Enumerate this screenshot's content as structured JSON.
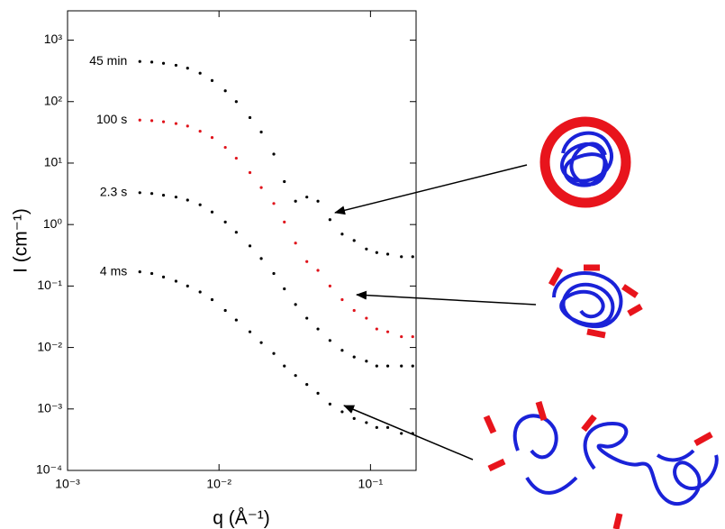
{
  "chart_data": {
    "type": "scatter",
    "x_label": "q (Å⁻¹)",
    "y_label": "I (cm⁻¹)",
    "xscale": "log",
    "yscale": "log",
    "xlim": [
      0.001,
      0.2
    ],
    "ylim": [
      0.0001,
      3000
    ],
    "xticks": [
      {
        "value": 0.001,
        "label": "10⁻³"
      },
      {
        "value": 0.01,
        "label": "10⁻²"
      },
      {
        "value": 0.1,
        "label": "10⁻¹"
      }
    ],
    "yticks": [
      {
        "value": 0.0001,
        "label": "10⁻⁴"
      },
      {
        "value": 0.001,
        "label": "10⁻³"
      },
      {
        "value": 0.01,
        "label": "10⁻²"
      },
      {
        "value": 0.1,
        "label": "10⁻¹"
      },
      {
        "value": 1,
        "label": "10⁰"
      },
      {
        "value": 10,
        "label": "10¹"
      },
      {
        "value": 100,
        "label": "10²"
      },
      {
        "value": 1000,
        "label": "10³"
      }
    ],
    "x": [
      0.003,
      0.0036,
      0.0043,
      0.0052,
      0.0062,
      0.0075,
      0.009,
      0.011,
      0.013,
      0.016,
      0.019,
      0.023,
      0.027,
      0.032,
      0.038,
      0.045,
      0.054,
      0.065,
      0.078,
      0.094,
      0.11,
      0.13,
      0.16,
      0.19
    ],
    "series": [
      {
        "name": "45 min",
        "color": "#000000",
        "values": [
          450,
          440,
          420,
          390,
          350,
          290,
          220,
          150,
          100,
          55,
          32,
          14,
          5,
          2.4,
          2.8,
          2.4,
          1.2,
          0.7,
          0.55,
          0.4,
          0.35,
          0.33,
          0.3,
          0.3
        ]
      },
      {
        "name": "100 s",
        "color": "#e0141c",
        "values": [
          50,
          49,
          47,
          44,
          40,
          33,
          26,
          18,
          12,
          7,
          4,
          2.2,
          1.1,
          0.5,
          0.25,
          0.18,
          0.1,
          0.06,
          0.04,
          0.03,
          0.02,
          0.018,
          0.015,
          0.015
        ]
      },
      {
        "name": "2.3 s",
        "color": "#000000",
        "values": [
          3.3,
          3.2,
          3.0,
          2.8,
          2.5,
          2.1,
          1.6,
          1.1,
          0.75,
          0.45,
          0.28,
          0.16,
          0.09,
          0.05,
          0.03,
          0.02,
          0.013,
          0.009,
          0.007,
          0.006,
          0.005,
          0.005,
          0.005,
          0.005
        ]
      },
      {
        "name": "4 ms",
        "color": "#000000",
        "values": [
          0.17,
          0.16,
          0.14,
          0.12,
          0.1,
          0.08,
          0.06,
          0.04,
          0.028,
          0.018,
          0.012,
          0.008,
          0.005,
          0.0035,
          0.0025,
          0.0018,
          0.0012,
          0.0009,
          0.0007,
          0.0006,
          0.0005,
          0.0005,
          0.0004,
          0.0004
        ]
      }
    ]
  }
}
